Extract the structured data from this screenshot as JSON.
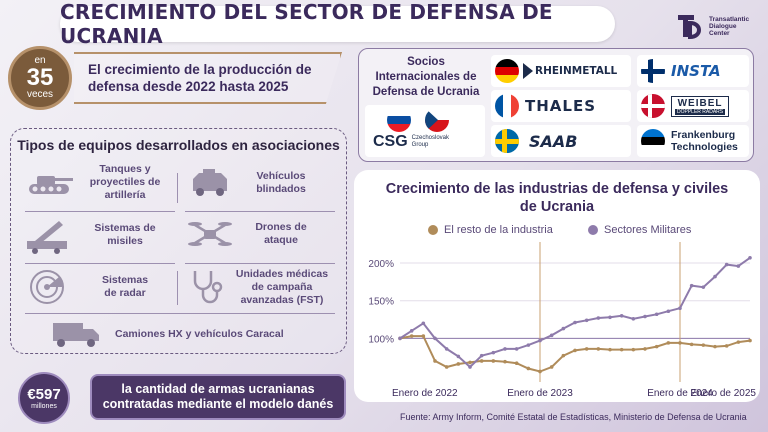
{
  "title": "CRECIMIENTO DEL SECTOR DE DEFENSA DE UCRANIA",
  "logo": {
    "line1": "Transatlantic",
    "line2": "Dialogue",
    "line3": "Center"
  },
  "growth": {
    "prefix": "en",
    "number": "35",
    "suffix": "veces",
    "text_line1": "El crecimiento de la producción de",
    "text_line2": "defensa desde 2022 hasta 2025"
  },
  "equipment": {
    "title": "Tipos de equipos desarrollados en asociaciones",
    "items": {
      "tanks": [
        "Tanques y",
        "proyectiles de",
        "artillería"
      ],
      "armored": [
        "Vehículos",
        "blindados"
      ],
      "missiles": [
        "Sistemas de",
        "misiles"
      ],
      "drones": [
        "Drones de",
        "ataque"
      ],
      "radar": [
        "Sistemas",
        "de radar"
      ],
      "medical": [
        "Unidades médicas",
        "de campaña",
        "avanzadas (FST)"
      ],
      "trucks": "Camiones HX y vehículos Caracal"
    }
  },
  "partners": {
    "label_line1": "Socios",
    "label_line2": "Internacionales de",
    "label_line3": "Defensa de Ucrania",
    "csg": "CSG",
    "csg_sub1": "Czechoslovak",
    "csg_sub2": "Group",
    "rheinmetall": "RHEINMETALL",
    "thales": "THALES",
    "saab": "SAAB",
    "insta": "INSTA",
    "weibel": "WEIBEL",
    "weibel_sub": "DOPPLER RADARS",
    "frankenburg1": "Frankenburg",
    "frankenburg2": "Technologies"
  },
  "chart_data": {
    "type": "line",
    "title": "Crecimiento de las industrias de defensa y civiles de Ucrania",
    "x_labels": [
      "Enero de 2022",
      "Enero de 2023",
      "Enero de 2024",
      "Enero de 2025"
    ],
    "y_ticks": [
      "100%",
      "150%",
      "200%"
    ],
    "ylim": [
      50,
      220
    ],
    "grid": "horizontal",
    "legend_position": "top",
    "series": [
      {
        "name": "El resto de la industria",
        "color": "#b08c5a",
        "values": [
          100,
          103,
          103,
          70,
          62,
          66,
          68,
          70,
          70,
          69,
          67,
          60,
          56,
          62,
          77,
          84,
          86,
          86,
          85,
          85,
          85,
          86,
          89,
          94,
          94,
          92,
          91,
          89,
          90,
          95,
          97
        ]
      },
      {
        "name": "Sectores Militares",
        "color": "#8e7bab",
        "values": [
          100,
          110,
          120,
          100,
          86,
          76,
          62,
          77,
          81,
          86,
          86,
          91,
          97,
          104,
          113,
          121,
          124,
          127,
          128,
          130,
          126,
          129,
          132,
          136,
          140,
          170,
          168,
          182,
          198,
          196,
          207
        ]
      }
    ]
  },
  "contract": {
    "amount": "€597",
    "unit": "millones",
    "text_line1": "la cantidad de armas ucranianas",
    "text_line2": "contratadas mediante el modelo danés"
  },
  "source": "Fuente: Army Inform, Comité Estatal de Estadísticas, Ministerio de Defensa de Ucrania"
}
